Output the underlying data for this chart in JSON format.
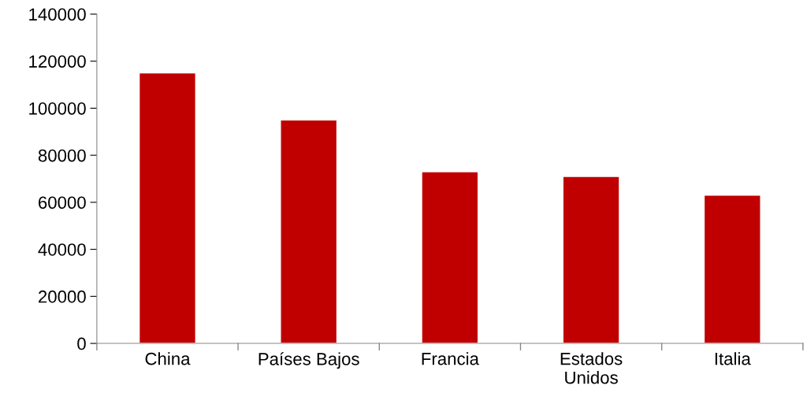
{
  "chart_data": {
    "type": "bar",
    "categories": [
      "China",
      "Países Bajos",
      "Francia",
      "Estados\nUnidos",
      "Italia"
    ],
    "values": [
      115000,
      95000,
      73000,
      71000,
      63000
    ],
    "color": "#c00000",
    "ylim": [
      0,
      140000
    ],
    "yticks": [
      0,
      20000,
      40000,
      60000,
      80000,
      100000,
      120000,
      140000
    ],
    "grid": false,
    "legend": false
  }
}
